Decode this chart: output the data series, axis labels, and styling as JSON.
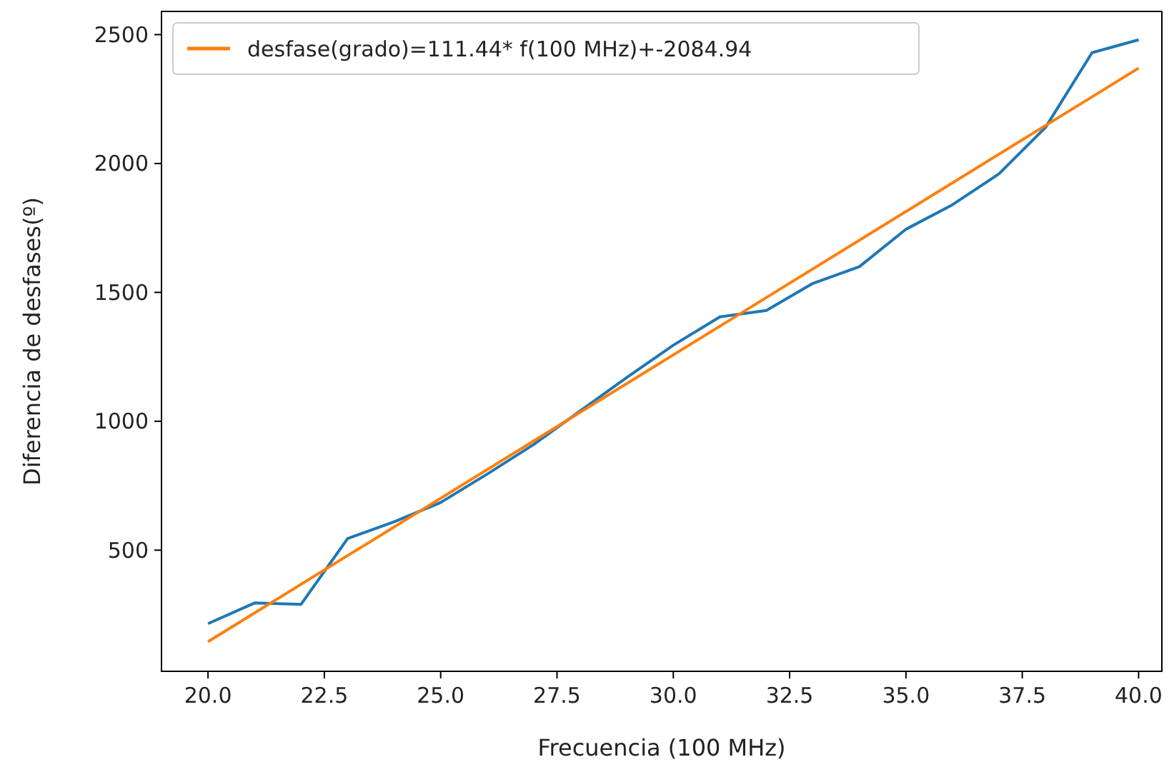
{
  "chart_data": {
    "type": "line",
    "xlabel": "Frecuencia (100 MHz)",
    "ylabel": "Diferencia de desfases(º)",
    "xlim": [
      19,
      40.5
    ],
    "ylim": [
      30,
      2590
    ],
    "xticks": [
      {
        "value": 20,
        "label": "20.0"
      },
      {
        "value": 22.5,
        "label": "22.5"
      },
      {
        "value": 25,
        "label": "25.0"
      },
      {
        "value": 27.5,
        "label": "27.5"
      },
      {
        "value": 30,
        "label": "30.0"
      },
      {
        "value": 32.5,
        "label": "32.5"
      },
      {
        "value": 35,
        "label": "35.0"
      },
      {
        "value": 37.5,
        "label": "37.5"
      },
      {
        "value": 40,
        "label": "40.0"
      }
    ],
    "yticks": [
      500,
      1000,
      1500,
      2000,
      2500
    ],
    "grid": false,
    "legend": "top left",
    "series": [
      {
        "color": "#1f77b4",
        "x": [
          20,
          21,
          22,
          23,
          24,
          25,
          26,
          27,
          28,
          29,
          30,
          31,
          32,
          33,
          34,
          35,
          36,
          37,
          38,
          39,
          40
        ],
        "values": [
          215,
          295,
          290,
          545,
          610,
          685,
          795,
          910,
          1040,
          1170,
          1295,
          1405,
          1430,
          1535,
          1600,
          1745,
          1840,
          1960,
          2140,
          2430,
          2480
        ]
      },
      {
        "name": "desfase(grado)=111.44* f(100 MHz)+-2084.94",
        "color": "#ff7f0e",
        "x": [
          20,
          40
        ],
        "values": [
          145,
          2370
        ]
      }
    ]
  }
}
